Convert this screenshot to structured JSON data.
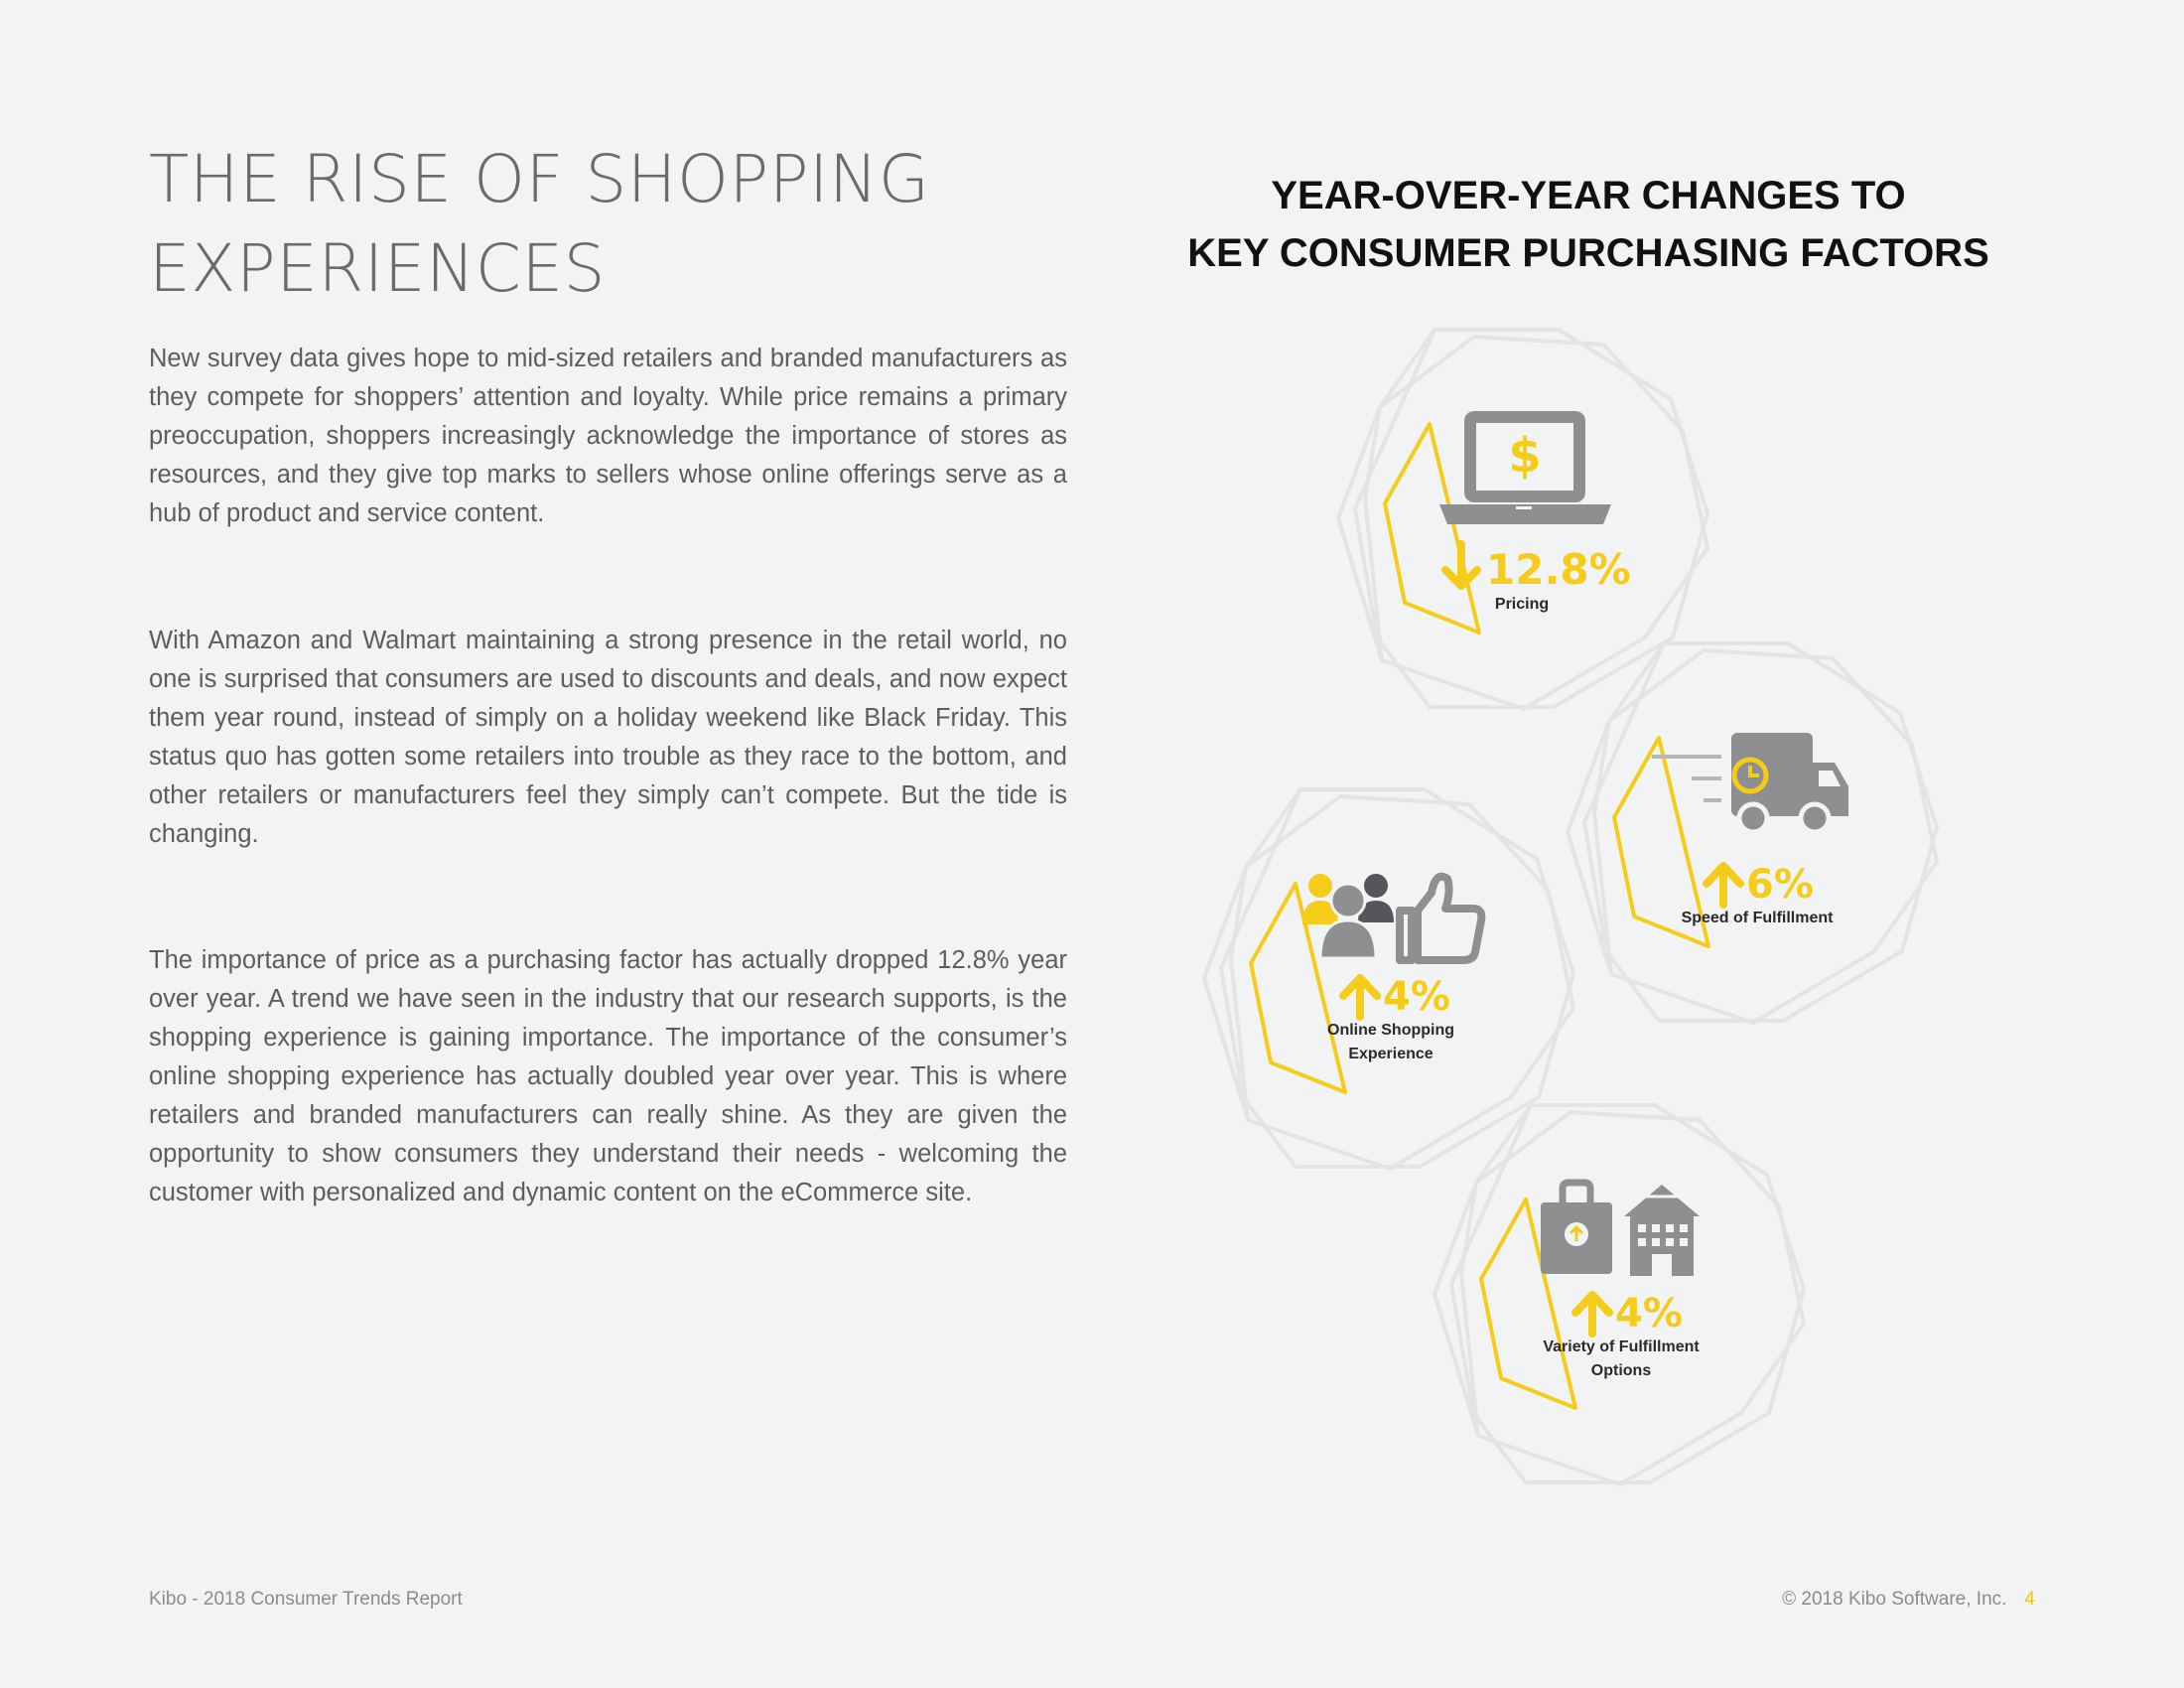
{
  "title": {
    "line1": "THE RISE OF SHOPPING",
    "line2": "EXPERIENCES"
  },
  "paragraphs": [
    "New survey data gives hope to mid-sized retailers and branded manufacturers as they compete for shoppers’ attention and loyalty. While price remains a primary preoccupation, shoppers increasingly acknowledge the importance of stores as resources, and they give top marks to sellers whose online offerings serve as a hub of product and service content.",
    "With Amazon and Walmart maintaining a strong presence in the retail world, no one is surprised that consumers are used to discounts and deals, and now expect them year round, instead of simply on a holiday weekend like Black Friday. This status quo has gotten some retailers into trouble as they race to the bottom, and other retailers or manufacturers feel they simply can’t compete. But the tide is changing.",
    "The importance of price as a purchasing factor has actually dropped 12.8% year over year. A trend we have seen in the industry that our research supports, is the shopping experience is gaining importance. The importance of the consumer’s online shopping experience has actually doubled year over year.  This is where retailers and branded manufacturers can really shine. As they are given the opportunity to show consumers they understand their needs - welcoming the customer with personalized and dynamic content on the eCommerce site."
  ],
  "infographic": {
    "title_line1": "YEAR-OVER-YEAR CHANGES TO",
    "title_line2": "KEY CONSUMER PURCHASING FACTORS",
    "factors": [
      {
        "label": "Pricing",
        "label2": "",
        "change": "12.8%",
        "direction": "down",
        "icon": "laptop-dollar-icon"
      },
      {
        "label": "Speed of Fulfillment",
        "label2": "",
        "change": "6%",
        "direction": "up",
        "icon": "delivery-truck-icon"
      },
      {
        "label": "Online Shopping",
        "label2": "Experience",
        "change": "4%",
        "direction": "up",
        "icon": "people-thumbs-up-icon"
      },
      {
        "label": "Variety of Fulfillment",
        "label2": "Options",
        "change": "4%",
        "direction": "up",
        "icon": "bag-building-icon"
      }
    ],
    "colors": {
      "accent": "#f5cc19",
      "icon_gray": "#8e8f91",
      "outline": "#e3e4e6"
    },
    "dollar_sign": "$"
  },
  "footer": {
    "left": "Kibo - 2018 Consumer Trends Report",
    "right": "© 2018 Kibo Software, Inc.",
    "page": "4"
  }
}
